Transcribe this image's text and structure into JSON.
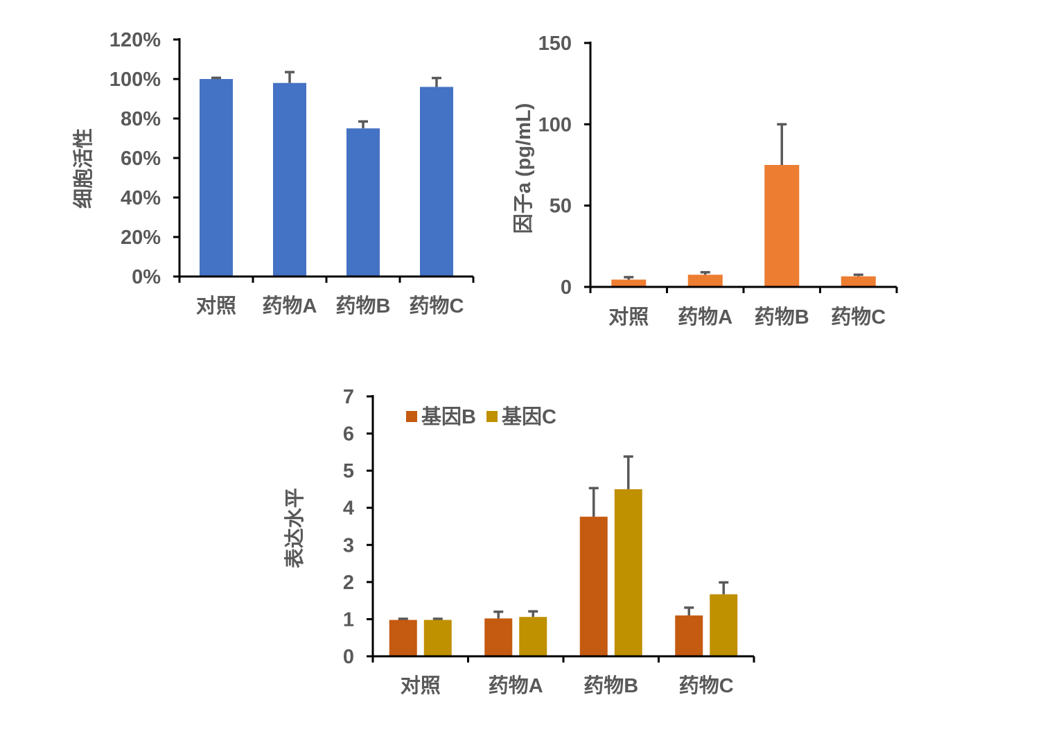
{
  "chart_data": [
    {
      "type": "bar",
      "categories": [
        "对照",
        "药物A",
        "药物B",
        "药物C"
      ],
      "series": [
        {
          "values": [
            100,
            98,
            75,
            96
          ],
          "errors": [
            0.6,
            5.5,
            3.5,
            4.5
          ],
          "color": "#4472C4"
        }
      ],
      "ylabel": "细胞活性",
      "ylim": [
        0,
        120
      ],
      "yticks": [
        "0%",
        "20%",
        "40%",
        "60%",
        "80%",
        "100%",
        "120%"
      ],
      "grid": false,
      "legend": "none"
    },
    {
      "type": "bar",
      "categories": [
        "对照",
        "药物A",
        "药物B",
        "药物C"
      ],
      "series": [
        {
          "values": [
            4.5,
            7.5,
            75,
            6.5
          ],
          "errors": [
            1.5,
            1.5,
            25,
            1.0
          ],
          "color": "#ED7D31"
        }
      ],
      "ylabel": "因子a (pg/mL)",
      "ylim": [
        0,
        150
      ],
      "yticks": [
        "0",
        "50",
        "100",
        "150"
      ],
      "grid": false,
      "legend": "none"
    },
    {
      "type": "bar",
      "categories": [
        "对照",
        "药物A",
        "药物B",
        "药物C"
      ],
      "series": [
        {
          "name": "基因B",
          "values": [
            0.98,
            1.02,
            3.76,
            1.1
          ],
          "errors": [
            0.03,
            0.18,
            0.77,
            0.21
          ],
          "color": "#C55A11"
        },
        {
          "name": "基因C",
          "values": [
            0.98,
            1.06,
            4.5,
            1.67
          ],
          "errors": [
            0.03,
            0.15,
            0.88,
            0.32
          ],
          "color": "#BF9000"
        }
      ],
      "ylabel": "表达水平",
      "ylim": [
        0,
        7
      ],
      "yticks": [
        "0",
        "1",
        "2",
        "3",
        "4",
        "5",
        "6",
        "7"
      ],
      "grid": false,
      "legend": "top-left"
    }
  ]
}
